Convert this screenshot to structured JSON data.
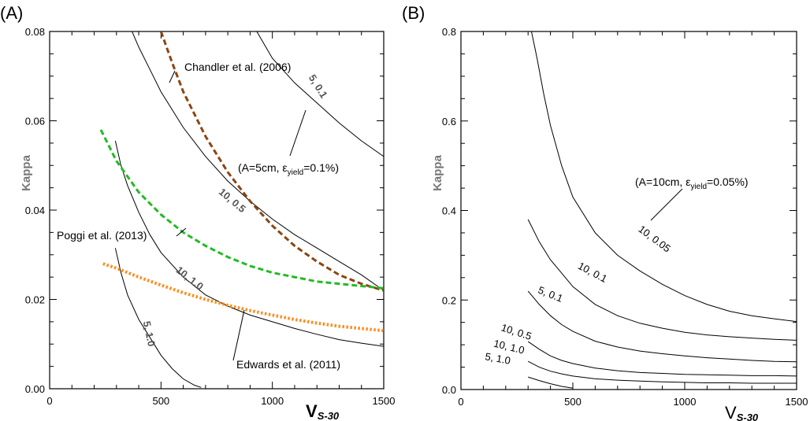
{
  "colors": {
    "axis": "#000000",
    "contour": "#000000",
    "contour_label": "#555555",
    "axis_title": "#777777",
    "chandler": "#8B4513",
    "poggi": "#22BB22",
    "edwards": "#FF8C1A"
  },
  "chart_data": [
    {
      "panel_label": "(A)",
      "type": "line",
      "xlabel": "V",
      "xlabel_sub": "S-30",
      "ylabel": "Kappa",
      "xlim": [
        0,
        1500
      ],
      "ylim": [
        0,
        0.08
      ],
      "xticks": [
        0,
        500,
        1000,
        1500
      ],
      "yticks": [
        0.0,
        0.02,
        0.04,
        0.06,
        0.08
      ],
      "xtick_labels": [
        "0",
        "500",
        "1000",
        "1500"
      ],
      "ytick_labels": [
        "0.00",
        "0.02",
        "0.04",
        "0.06",
        "0.08"
      ],
      "condition_note": {
        "prefix": "(A=5cm, ε",
        "sub": "yield",
        "suffix": "=0.1%)"
      },
      "contours": [
        {
          "label": "5, 0.1",
          "x": [
            930,
            1000,
            1100,
            1200,
            1300,
            1400,
            1500
          ],
          "y": [
            0.08,
            0.074,
            0.0685,
            0.064,
            0.0595,
            0.0555,
            0.052
          ]
        },
        {
          "label": "10, 0.5",
          "x": [
            370,
            400,
            450,
            500,
            600,
            700,
            800,
            900,
            1000,
            1100,
            1200,
            1300,
            1400,
            1500
          ],
          "y": [
            0.08,
            0.0765,
            0.0715,
            0.0665,
            0.0585,
            0.052,
            0.0465,
            0.042,
            0.038,
            0.0345,
            0.0315,
            0.0285,
            0.0255,
            0.022
          ]
        },
        {
          "label": "10, 1.0",
          "x": [
            295,
            320,
            350,
            400,
            450,
            500,
            600,
            700,
            800,
            900,
            1000,
            1100,
            1200,
            1300,
            1400,
            1500
          ],
          "y": [
            0.0555,
            0.05,
            0.0455,
            0.0395,
            0.0345,
            0.0305,
            0.025,
            0.021,
            0.0185,
            0.0165,
            0.015,
            0.0135,
            0.0122,
            0.011,
            0.0102,
            0.0095
          ]
        },
        {
          "label": "5, 1.0",
          "x": [
            295,
            320,
            350,
            400,
            450,
            500,
            550,
            600,
            650,
            680
          ],
          "y": [
            0.0315,
            0.026,
            0.021,
            0.0155,
            0.0115,
            0.0075,
            0.0045,
            0.0022,
            0.0008,
            0.0003
          ]
        }
      ],
      "series": [
        {
          "name": "Chandler et al. (2006)",
          "style": "dashed",
          "color": "#8B4513",
          "x": [
            500,
            550,
            600,
            700,
            800,
            900,
            1000,
            1100,
            1200,
            1300,
            1400,
            1500
          ],
          "y": [
            0.08,
            0.073,
            0.0665,
            0.0565,
            0.0485,
            0.042,
            0.0365,
            0.032,
            0.0285,
            0.0255,
            0.0235,
            0.022
          ]
        },
        {
          "name": "Poggi et al. (2013)",
          "style": "dashed",
          "color": "#22BB22",
          "x": [
            230,
            300,
            400,
            500,
            600,
            700,
            800,
            900,
            1000,
            1100,
            1200,
            1300,
            1400,
            1500
          ],
          "y": [
            0.058,
            0.051,
            0.044,
            0.039,
            0.035,
            0.032,
            0.0295,
            0.0275,
            0.026,
            0.025,
            0.024,
            0.0235,
            0.023,
            0.0225
          ]
        },
        {
          "name": "Edwards et al. (2011)",
          "style": "dotted",
          "color": "#FF8C1A",
          "x": [
            240,
            300,
            400,
            500,
            600,
            700,
            800,
            900,
            1000,
            1100,
            1200,
            1300,
            1400,
            1500
          ],
          "y": [
            0.028,
            0.027,
            0.025,
            0.0232,
            0.0215,
            0.02,
            0.0187,
            0.0175,
            0.0165,
            0.0155,
            0.0147,
            0.014,
            0.0135,
            0.013
          ]
        }
      ]
    },
    {
      "panel_label": "(B)",
      "type": "line",
      "xlabel": "V",
      "xlabel_sub": "S-30",
      "ylabel": "Kappa",
      "xlim": [
        0,
        1500
      ],
      "ylim": [
        0,
        0.8
      ],
      "xticks": [
        0,
        500,
        1000,
        1500
      ],
      "yticks": [
        0.0,
        0.2,
        0.4,
        0.6,
        0.8
      ],
      "xtick_labels": [
        "0",
        "500",
        "1000",
        "1500"
      ],
      "ytick_labels": [
        "0.0",
        "0.2",
        "0.4",
        "0.6",
        "0.8"
      ],
      "condition_note": {
        "prefix": "(A=10cm, ε",
        "sub": "yield",
        "suffix": "=0.05%)"
      },
      "contours": [
        {
          "label": "10, 0.05",
          "x": [
            315,
            340,
            370,
            400,
            450,
            500,
            600,
            700,
            800,
            900,
            1000,
            1100,
            1200,
            1300,
            1400,
            1500
          ],
          "y": [
            0.8,
            0.74,
            0.66,
            0.59,
            0.5,
            0.43,
            0.35,
            0.3,
            0.265,
            0.235,
            0.21,
            0.19,
            0.175,
            0.165,
            0.158,
            0.152
          ]
        },
        {
          "label": "10, 0.1",
          "x": [
            300,
            350,
            400,
            450,
            500,
            600,
            700,
            800,
            900,
            1000,
            1100,
            1200,
            1300,
            1400,
            1500
          ],
          "y": [
            0.38,
            0.33,
            0.29,
            0.26,
            0.23,
            0.19,
            0.165,
            0.148,
            0.137,
            0.128,
            0.122,
            0.118,
            0.115,
            0.112,
            0.11
          ]
        },
        {
          "label": "5, 0.1",
          "x": [
            300,
            350,
            400,
            450,
            500,
            600,
            700,
            800,
            900,
            1000,
            1100,
            1200,
            1300,
            1400,
            1500
          ],
          "y": [
            0.22,
            0.19,
            0.165,
            0.145,
            0.13,
            0.108,
            0.095,
            0.086,
            0.08,
            0.075,
            0.071,
            0.068,
            0.065,
            0.063,
            0.062
          ]
        },
        {
          "label": "10, 0.5",
          "x": [
            300,
            350,
            400,
            450,
            500,
            600,
            700,
            800,
            900,
            1000,
            1100,
            1200,
            1300,
            1400,
            1500
          ],
          "y": [
            0.107,
            0.09,
            0.075,
            0.065,
            0.058,
            0.048,
            0.042,
            0.038,
            0.036,
            0.034,
            0.033,
            0.032,
            0.031,
            0.031,
            0.03
          ]
        },
        {
          "label": "10, 1.0",
          "x": [
            300,
            350,
            400,
            450,
            500,
            600,
            700,
            800,
            900,
            1000,
            1100,
            1200,
            1300,
            1400,
            1500
          ],
          "y": [
            0.063,
            0.05,
            0.041,
            0.035,
            0.03,
            0.024,
            0.021,
            0.019,
            0.017,
            0.016,
            0.015,
            0.015,
            0.014,
            0.014,
            0.014
          ]
        },
        {
          "label": "5, 1.0",
          "x": [
            300,
            350,
            400,
            450,
            500
          ],
          "y": [
            0.028,
            0.02,
            0.013,
            0.007,
            0.003
          ]
        }
      ],
      "series": []
    }
  ]
}
